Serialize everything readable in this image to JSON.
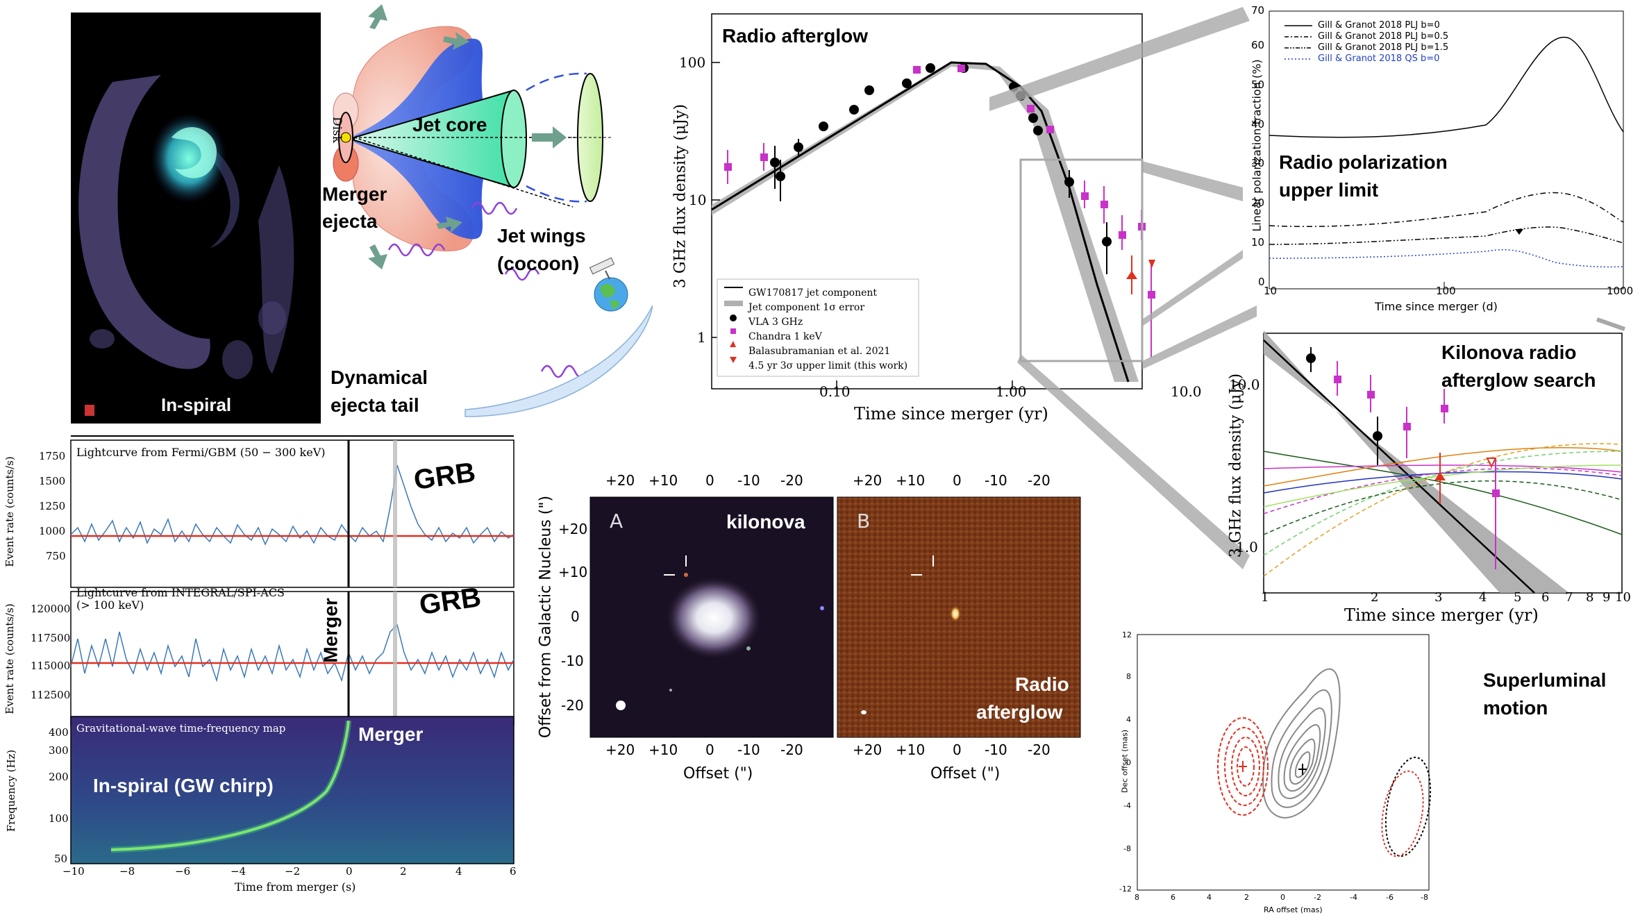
{
  "merger_panel": {
    "inspiral_label": "In-spiral",
    "disk_label": "Disk",
    "jet_core_label": "Jet core",
    "merger_ejecta_label_1": "Merger",
    "merger_ejecta_label_2": "ejecta",
    "jet_wings_label_1": "Jet wings",
    "jet_wings_label_2": "(cocoon)",
    "dynamical_tail_label_1": "Dynamical",
    "dynamical_tail_label_2": "ejecta tail"
  },
  "radio_afterglow": {
    "title": "Radio afterglow",
    "ylabel": "3 GHz flux density (μJy)",
    "xlabel": "Time since merger (yr)",
    "xticks": [
      "0.10",
      "1.00",
      "10.0"
    ],
    "yticks": [
      "100",
      "10",
      "1"
    ],
    "legend": [
      "GW170817 jet component",
      "Jet component 1σ error",
      "VLA 3 GHz",
      "Chandra 1 keV",
      "Balasubramanian et al. 2021",
      "4.5 yr 3σ upper limit (this work)"
    ]
  },
  "polarization": {
    "title_1": "Radio polarization",
    "title_2": "upper limit",
    "ylabel": "Linear polarization fraction (%)",
    "xlabel": "Time since merger (d)",
    "xticks": [
      "10",
      "100",
      "1000"
    ],
    "yticks": [
      "70",
      "60",
      "50",
      "40",
      "30",
      "20",
      "10",
      "0"
    ],
    "legend": [
      "Gill & Granot 2018 PLJ b=0",
      "Gill & Granot 2018 PLJ b=0.5",
      "Gill & Granot 2018 PLJ b=1.5",
      "Gill & Granot 2018 QS b=0"
    ]
  },
  "kilonova_search": {
    "title_1": "Kilonova radio",
    "title_2": "afterglow search",
    "ylabel": "3 GHz flux density (μJy)",
    "xlabel": "Time since merger (yr)",
    "xticks": [
      "1",
      "2",
      "3",
      "4",
      "5",
      "6",
      "7",
      "8",
      "9",
      "10"
    ],
    "yticks": [
      "10.0",
      "1.0"
    ]
  },
  "lightcurves": {
    "fermi_label": "Lightcurve from Fermi/GBM (50 − 300 keV)",
    "fermi_yticks": [
      "1750",
      "1500",
      "1250",
      "1000",
      "750"
    ],
    "integral_label_1": "Lightcurve from INTEGRAL/SPI-ACS",
    "integral_label_2": "(> 100 keV)",
    "integral_yticks": [
      "120000",
      "117500",
      "115000",
      "112500"
    ],
    "ylabel": "Event rate (counts/s)",
    "grb_label": "GRB",
    "merger_label": "Merger",
    "gw_label": "Gravitational-wave time-frequency map",
    "gw_yticks": [
      "400",
      "300",
      "200",
      "100",
      "50"
    ],
    "gw_ylabel": "Frequency (Hz)",
    "chirp_label": "In-spiral (GW chirp)",
    "xlabel": "Time from merger (s)",
    "xticks": [
      "−10",
      "−8",
      "−6",
      "−4",
      "−2",
      "0",
      "2",
      "4",
      "6"
    ]
  },
  "images": {
    "panel_a": "A",
    "panel_b": "B",
    "kilonova_label": "kilonova",
    "radio_label_1": "Radio",
    "radio_label_2": "afterglow",
    "ylabel": "Offset from Galactic Nucleus (\")",
    "xlabel": "Offset (\")",
    "xticks": [
      "+20",
      "+10",
      "0",
      "-10",
      "-20"
    ],
    "yticks": [
      "+20",
      "+10",
      "0",
      "-10",
      "-20"
    ]
  },
  "superluminal": {
    "title_1": "Superluminal",
    "title_2": "motion",
    "ylabel": "Dec offset (mas)",
    "xlabel": "RA offset (mas)",
    "xticks": [
      "8",
      "6",
      "4",
      "2",
      "0",
      "-2",
      "-4",
      "-6",
      "-8"
    ],
    "yticks": [
      "12",
      "8",
      "4",
      "0",
      "-4",
      "-8",
      "-12"
    ]
  },
  "colors": {
    "magenta": "#c832c8",
    "red": "#e03020",
    "blue_lc": "#3a78b8",
    "grey_band": "#b0b0b0"
  }
}
